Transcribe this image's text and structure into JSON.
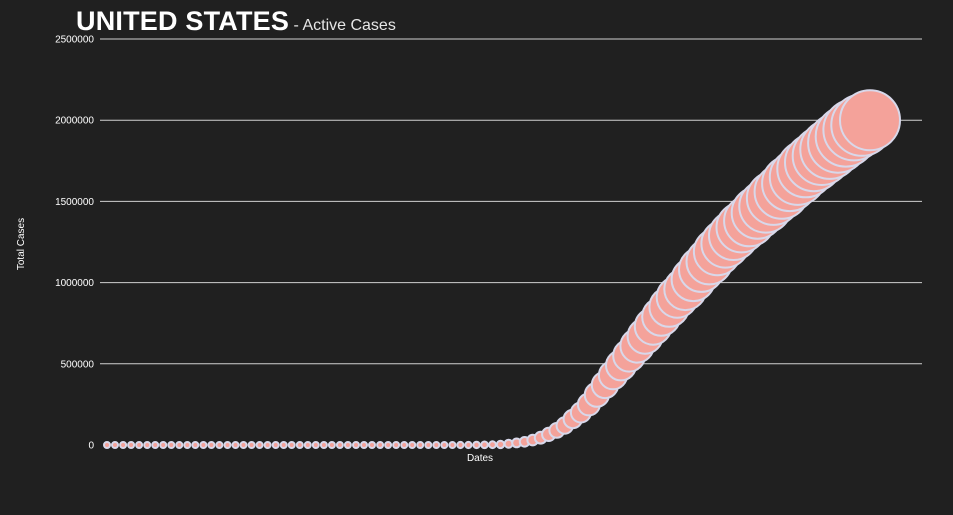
{
  "chart_data": {
    "type": "scatter",
    "title": "UNITED STATES",
    "subtitle": " - Active Cases",
    "xlabel": "Dates",
    "ylabel": "Total Cases",
    "ylim": [
      0,
      2500000
    ],
    "y_ticks": [
      "0",
      "500000",
      "1000000",
      "1500000",
      "2000000",
      "2500000"
    ],
    "grid": true,
    "legend": "none",
    "marker_fill": "#f4a29a",
    "marker_stroke": "#d8d8ea",
    "background": "#202020",
    "gridline_color": "#d0d0d0",
    "text_color": "#ffffff",
    "series": [
      {
        "values": [
          0,
          0,
          0,
          0,
          0,
          0,
          0,
          0,
          0,
          0,
          0,
          0,
          0,
          0,
          0,
          0,
          0,
          0,
          0,
          0,
          0,
          0,
          0,
          0,
          0,
          0,
          0,
          0,
          0,
          0,
          0,
          0,
          0,
          0,
          0,
          0,
          0,
          0,
          0,
          0,
          0,
          0,
          0,
          0,
          100,
          200,
          500,
          1000,
          2000,
          4000,
          8000,
          13000,
          20000,
          30000,
          45000,
          65000,
          90000,
          120000,
          160000,
          200000,
          250000,
          310000,
          370000,
          430000,
          490000,
          550000,
          610000,
          670000,
          730000,
          790000,
          850000,
          910000,
          960000,
          1020000,
          1080000,
          1130000,
          1190000,
          1240000,
          1290000,
          1340000,
          1380000,
          1430000,
          1470000,
          1520000,
          1560000,
          1610000,
          1650000,
          1700000,
          1740000,
          1780000,
          1820000,
          1860000,
          1900000,
          1940000,
          1970000,
          2000000
        ]
      }
    ]
  }
}
